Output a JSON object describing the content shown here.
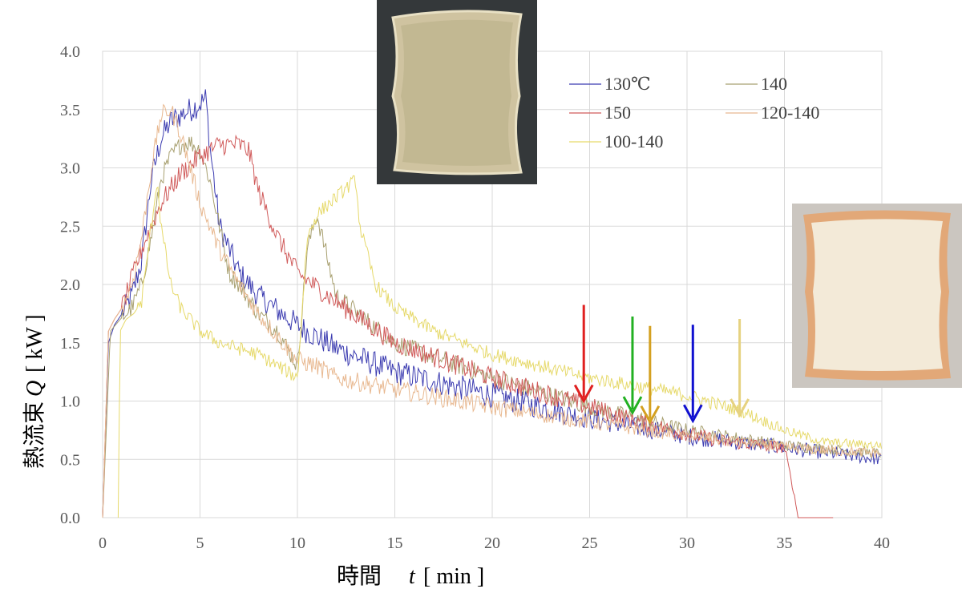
{
  "chart_data": {
    "type": "line",
    "xlabel_main": "時間",
    "xlabel_var": "t",
    "xlabel_unit": "[ min ]",
    "ylabel_main": "熱流束",
    "ylabel_var": "Q",
    "ylabel_unit": "[ kW ]",
    "xlim": [
      0,
      40
    ],
    "ylim": [
      0,
      4.0
    ],
    "xticks": [
      "0",
      "5",
      "10",
      "15",
      "20",
      "25",
      "30",
      "35",
      "40"
    ],
    "yticks": [
      "0.0",
      "0.5",
      "1.0",
      "1.5",
      "2.0",
      "2.5",
      "3.0",
      "3.5",
      "4.0"
    ],
    "grid": true,
    "legend_position": "top-center",
    "series": [
      {
        "name": "130℃",
        "color": "#3b3bb0",
        "noise": 0.11,
        "x": [
          0,
          0.3,
          0.6,
          1,
          1.5,
          2,
          2.5,
          3,
          3.5,
          4,
          4.5,
          5,
          5.3,
          5.5,
          6,
          6.5,
          7,
          8,
          10,
          12,
          15,
          20,
          25,
          30,
          35,
          40
        ],
        "y": [
          0,
          1.5,
          1.65,
          1.75,
          1.9,
          2.2,
          2.9,
          3.25,
          3.4,
          3.45,
          3.5,
          3.55,
          3.6,
          3.2,
          2.5,
          2.3,
          2.1,
          1.9,
          1.65,
          1.45,
          1.25,
          1.05,
          0.85,
          0.7,
          0.6,
          0.5
        ]
      },
      {
        "name": "140",
        "color": "#a8a070",
        "noise": 0.08,
        "x": [
          0,
          0.4,
          0.9,
          1.5,
          2,
          2.5,
          3,
          3.5,
          4,
          4.5,
          5,
          5.5,
          6,
          6.5,
          7,
          8,
          9,
          10,
          10.5,
          11,
          12,
          15,
          20,
          25,
          30,
          35,
          40
        ],
        "y": [
          0,
          1.6,
          1.7,
          1.8,
          2.0,
          2.4,
          2.9,
          3.1,
          3.2,
          3.22,
          3.15,
          2.9,
          2.5,
          2.1,
          2.0,
          1.75,
          1.6,
          1.3,
          2.3,
          2.6,
          1.9,
          1.5,
          1.2,
          0.95,
          0.75,
          0.62,
          0.55
        ]
      },
      {
        "name": "150",
        "color": "#d05a5a",
        "noise": 0.09,
        "x": [
          0,
          0.3,
          0.6,
          1,
          2,
          3,
          4,
          5,
          6,
          7,
          7.5,
          8,
          9,
          10,
          12,
          15,
          20,
          25,
          28,
          30,
          32,
          34,
          35,
          35.5,
          35.7,
          36,
          37,
          37.5
        ],
        "y": [
          0,
          1.6,
          1.7,
          1.8,
          2.3,
          2.7,
          2.95,
          3.1,
          3.2,
          3.2,
          3.15,
          2.8,
          2.4,
          2.1,
          1.85,
          1.5,
          1.2,
          0.95,
          0.8,
          0.72,
          0.65,
          0.62,
          0.6,
          0.2,
          0,
          0,
          0,
          0
        ]
      },
      {
        "name": "120-140",
        "color": "#e8b890",
        "noise": 0.08,
        "x": [
          0,
          0.3,
          0.6,
          1,
          1.5,
          2,
          2.5,
          3,
          3.5,
          4,
          4.5,
          5,
          6,
          7,
          8,
          9,
          10,
          11,
          12,
          15,
          20,
          25,
          30,
          35,
          40
        ],
        "y": [
          0,
          1.6,
          1.7,
          1.8,
          2.0,
          2.4,
          3.0,
          3.45,
          3.5,
          3.3,
          3.0,
          2.7,
          2.3,
          2.0,
          1.75,
          1.55,
          1.35,
          1.3,
          1.2,
          1.1,
          0.95,
          0.82,
          0.7,
          0.6,
          0.55
        ]
      },
      {
        "name": "100-140",
        "color": "#e6d96a",
        "noise": 0.06,
        "x": [
          0.8,
          0.9,
          1.2,
          1.6,
          2,
          2.5,
          2.8,
          3,
          3.5,
          4,
          5,
          6,
          7,
          8,
          9,
          10,
          10.5,
          11,
          12,
          13,
          13.2,
          14,
          15,
          17,
          20,
          25,
          30,
          33,
          35,
          37,
          40
        ],
        "y": [
          0,
          1.6,
          1.7,
          1.75,
          1.85,
          2.5,
          2.9,
          2.5,
          2.0,
          1.8,
          1.6,
          1.5,
          1.45,
          1.4,
          1.3,
          1.2,
          2.4,
          2.6,
          2.75,
          2.9,
          2.5,
          2.0,
          1.8,
          1.6,
          1.4,
          1.2,
          1.05,
          0.9,
          0.75,
          0.65,
          0.62
        ]
      }
    ],
    "arrows": [
      {
        "x": 24.7,
        "y": 1.0,
        "color": "#e02020"
      },
      {
        "x": 27.2,
        "y": 0.9,
        "color": "#22b022"
      },
      {
        "x": 28.1,
        "y": 0.82,
        "color": "#d4a020"
      },
      {
        "x": 30.3,
        "y": 0.83,
        "color": "#1010d0"
      },
      {
        "x": 32.7,
        "y": 0.88,
        "color": "#e6d280"
      }
    ]
  },
  "photos": {
    "top_photo_name": "toast-photo-dark-crust",
    "right_photo_name": "bread-photo-fresh"
  }
}
